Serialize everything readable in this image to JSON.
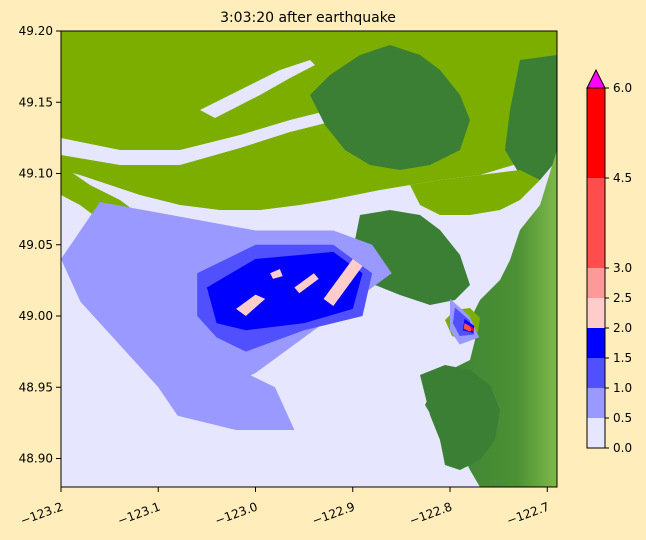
{
  "chart_data": {
    "type": "heatmap",
    "title": "3:03:20 after earthquake",
    "xlim": [
      -123.2,
      -122.69
    ],
    "ylim": [
      48.88,
      49.2
    ],
    "x_ticks": [
      {
        "value": -123.2,
        "label": "−123.2"
      },
      {
        "value": -123.1,
        "label": "−123.1"
      },
      {
        "value": -123.0,
        "label": "−123.0"
      },
      {
        "value": -122.9,
        "label": "−122.9"
      },
      {
        "value": -122.8,
        "label": "−122.8"
      },
      {
        "value": -122.7,
        "label": "−122.7"
      }
    ],
    "y_ticks": [
      {
        "value": 48.9,
        "label": "48.90"
      },
      {
        "value": 48.95,
        "label": "48.95"
      },
      {
        "value": 49.0,
        "label": "49.00"
      },
      {
        "value": 49.05,
        "label": "49.05"
      },
      {
        "value": 49.1,
        "label": "49.10"
      },
      {
        "value": 49.15,
        "label": "49.15"
      },
      {
        "value": 49.2,
        "label": "49.20"
      }
    ],
    "colorbar": {
      "boundaries": [
        0.0,
        0.5,
        1.0,
        1.5,
        2.0,
        2.5,
        3.0,
        4.5,
        6.0
      ],
      "labels": [
        "0.0",
        "0.5",
        "1.0",
        "1.5",
        "2.0",
        "2.5",
        "3.0",
        "4.5",
        "6.0"
      ],
      "colors": [
        "#e6e6ff",
        "#9999ff",
        "#5050ff",
        "#0000ff",
        "#ffcccc",
        "#ff9999",
        "#ff4d4d",
        "#ff0000"
      ],
      "extend_color": "#ff00ff",
      "extend": "max"
    },
    "colors": {
      "water": "#e6e6ff",
      "lowland": "#7cae00",
      "highland": "#3a7f34",
      "upland": "#5aa030"
    },
    "regions": [
      {
        "name": "wet-low",
        "level": 0.5,
        "points": [
          [
            -123.2,
            49.04
          ],
          [
            -123.16,
            49.08
          ],
          [
            -123.08,
            49.07
          ],
          [
            -123.0,
            49.06
          ],
          [
            -122.92,
            49.06
          ],
          [
            -122.88,
            49.05
          ],
          [
            -122.86,
            49.03
          ],
          [
            -122.9,
            49.01
          ],
          [
            -122.94,
            48.99
          ],
          [
            -123.0,
            48.96
          ],
          [
            -123.06,
            48.94
          ],
          [
            -123.1,
            48.95
          ],
          [
            -123.14,
            48.98
          ],
          [
            -123.18,
            49.01
          ]
        ]
      },
      {
        "name": "wet-low-south",
        "level": 0.5,
        "points": [
          [
            -123.1,
            48.95
          ],
          [
            -123.04,
            48.97
          ],
          [
            -122.98,
            48.95
          ],
          [
            -122.96,
            48.92
          ],
          [
            -123.02,
            48.92
          ],
          [
            -123.08,
            48.93
          ]
        ]
      },
      {
        "name": "wet-mid",
        "level": 1.0,
        "points": [
          [
            -123.06,
            49.03
          ],
          [
            -123.0,
            49.05
          ],
          [
            -122.92,
            49.05
          ],
          [
            -122.88,
            49.03
          ],
          [
            -122.89,
            49.0
          ],
          [
            -122.95,
            48.99
          ],
          [
            -123.01,
            48.975
          ],
          [
            -123.04,
            48.985
          ],
          [
            -123.06,
            49.0
          ]
        ]
      },
      {
        "name": "wet-high",
        "level": 1.5,
        "points": [
          [
            -123.05,
            49.02
          ],
          [
            -123.0,
            49.04
          ],
          [
            -122.92,
            49.045
          ],
          [
            -122.89,
            49.03
          ],
          [
            -122.9,
            49.005
          ],
          [
            -122.95,
            48.995
          ],
          [
            -123.01,
            48.99
          ],
          [
            -123.04,
            48.995
          ]
        ]
      },
      {
        "name": "surge-1",
        "level": 2.0,
        "points": [
          [
            -123.02,
            49.005
          ],
          [
            -123.0,
            49.015
          ],
          [
            -122.99,
            49.012
          ],
          [
            -123.01,
            49.0
          ]
        ]
      },
      {
        "name": "surge-2",
        "level": 2.0,
        "points": [
          [
            -122.96,
            49.02
          ],
          [
            -122.94,
            49.03
          ],
          [
            -122.935,
            49.026
          ],
          [
            -122.955,
            49.016
          ]
        ]
      },
      {
        "name": "surge-3",
        "level": 2.0,
        "points": [
          [
            -122.93,
            49.012
          ],
          [
            -122.9,
            49.04
          ],
          [
            -122.89,
            49.035
          ],
          [
            -122.92,
            49.007
          ]
        ]
      },
      {
        "name": "surge-4",
        "level": 2.0,
        "points": [
          [
            -122.985,
            49.03
          ],
          [
            -122.975,
            49.033
          ],
          [
            -122.972,
            49.028
          ],
          [
            -122.982,
            49.026
          ]
        ]
      },
      {
        "name": "inlet-rim",
        "level": 0.5,
        "points": [
          [
            -122.8,
            49.012
          ],
          [
            -122.78,
            49.0
          ],
          [
            -122.77,
            48.985
          ],
          [
            -122.79,
            48.98
          ],
          [
            -122.8,
            48.99
          ]
        ]
      },
      {
        "name": "inlet-mid",
        "level": 1.0,
        "points": [
          [
            -122.795,
            49.006
          ],
          [
            -122.78,
            48.997
          ],
          [
            -122.775,
            48.987
          ],
          [
            -122.79,
            48.986
          ],
          [
            -122.797,
            48.995
          ]
        ]
      },
      {
        "name": "inlet-high",
        "level": 1.5,
        "points": [
          [
            -122.785,
            48.998
          ],
          [
            -122.775,
            48.993
          ],
          [
            -122.776,
            48.988
          ],
          [
            -122.787,
            48.99
          ]
        ]
      },
      {
        "name": "inlet-peak-a",
        "level": 3.0,
        "points": [
          [
            -122.785,
            48.995
          ],
          [
            -122.777,
            48.992
          ],
          [
            -122.779,
            48.989
          ],
          [
            -122.786,
            48.991
          ]
        ]
      },
      {
        "name": "inlet-peak-b",
        "level": 6.0,
        "points": [
          [
            -122.78,
            48.993
          ],
          [
            -122.775,
            48.991
          ],
          [
            -122.777,
            48.989
          ]
        ]
      }
    ]
  }
}
